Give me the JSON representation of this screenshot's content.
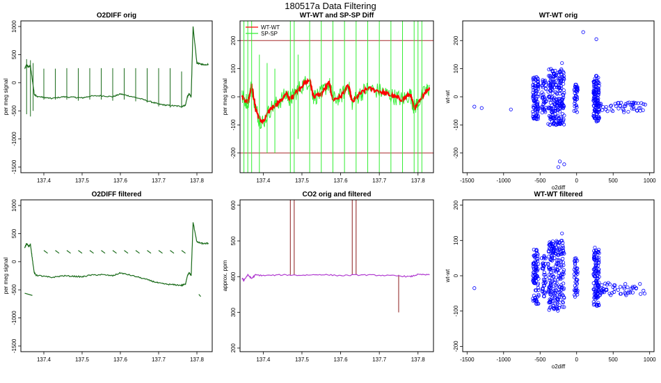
{
  "page": {
    "title": "180517a   Data Filtering"
  },
  "colors": {
    "dark_green": "#1a6b1a",
    "red": "#ff0000",
    "bright_green": "#33ee33",
    "dark_red": "#8b1a1a",
    "purple": "#b03ad0",
    "blue": "#0000ff",
    "hline": "#a52a2a"
  },
  "chart_data": [
    {
      "id": "o2diff-orig",
      "type": "line",
      "title": "O2DIFF orig",
      "xlabel": "",
      "ylabel": "per meg signal",
      "xlim": [
        137.34,
        137.84
      ],
      "ylim": [
        -1600,
        1100
      ],
      "xticks": [
        137.4,
        137.5,
        137.6,
        137.7,
        137.8
      ],
      "xtick_labels": [
        "137.4",
        "137.5",
        "137.6",
        "137.7",
        "137.8"
      ],
      "yticks": [
        -1500,
        -1000,
        -500,
        0,
        500,
        1000
      ],
      "ytick_labels": [
        "-1500",
        "-1000",
        "-500",
        "0",
        "500",
        "1000"
      ],
      "series": [
        {
          "name": "o2diff",
          "color": "#1a6b1a",
          "x": [
            137.35,
            137.355,
            137.36,
            137.365,
            137.37,
            137.375,
            137.38,
            137.4,
            137.42,
            137.45,
            137.48,
            137.5,
            137.52,
            137.55,
            137.58,
            137.6,
            137.62,
            137.65,
            137.68,
            137.7,
            137.72,
            137.74,
            137.76,
            137.77,
            137.775,
            137.78,
            137.785,
            137.79,
            137.8,
            137.81,
            137.82,
            137.83
          ],
          "y": [
            250,
            320,
            280,
            300,
            50,
            -200,
            -240,
            -260,
            -280,
            -250,
            -260,
            -270,
            -240,
            -230,
            -250,
            -200,
            -230,
            -280,
            -340,
            -380,
            -400,
            -410,
            -420,
            -400,
            -250,
            -200,
            -250,
            990,
            350,
            330,
            320,
            330
          ]
        },
        {
          "name": "spikes",
          "color": "#1a6b1a",
          "spikes_x": [
            137.355,
            137.365,
            137.372,
            137.4,
            137.43,
            137.46,
            137.49,
            137.52,
            137.55,
            137.58,
            137.61,
            137.64,
            137.67,
            137.7,
            137.73,
            137.76
          ],
          "spikes_top": [
            420,
            400,
            350,
            250,
            250,
            260,
            260,
            260,
            260,
            260,
            260,
            260,
            260,
            260,
            260,
            200
          ],
          "spikes_bottom": [
            -560,
            -600,
            -500,
            -300,
            -300,
            -300,
            -320,
            -300,
            -300,
            -320,
            -300,
            -330,
            -350,
            -420,
            -440,
            -450
          ]
        }
      ]
    },
    {
      "id": "wtwt-spsp-diff",
      "type": "line",
      "title": "WT-WT and SP-SP Diff",
      "xlabel": "",
      "ylabel": "per meg signal",
      "xlim": [
        137.34,
        137.84
      ],
      "ylim": [
        -270,
        270
      ],
      "xticks": [
        137.4,
        137.5,
        137.6,
        137.7,
        137.8
      ],
      "xtick_labels": [
        "137.4",
        "137.5",
        "137.6",
        "137.7",
        "137.8"
      ],
      "yticks": [
        -200,
        -100,
        0,
        100,
        200
      ],
      "ytick_labels": [
        "-200",
        "-100",
        "0",
        "100",
        "200"
      ],
      "hlines": [
        200,
        -200
      ],
      "legend": [
        {
          "label": "WT-WT",
          "color": "#ff0000"
        },
        {
          "label": "SP-SP",
          "color": "#33ee33"
        }
      ],
      "series": [
        {
          "name": "WT-WT",
          "color": "#ff0000",
          "x": [
            137.345,
            137.36,
            137.37,
            137.38,
            137.39,
            137.4,
            137.42,
            137.44,
            137.46,
            137.47,
            137.48,
            137.5,
            137.52,
            137.53,
            137.55,
            137.57,
            137.58,
            137.6,
            137.62,
            137.63,
            137.65,
            137.67,
            137.7,
            137.72,
            137.74,
            137.76,
            137.78,
            137.79,
            137.8,
            137.82,
            137.83
          ],
          "y": [
            0,
            -20,
            40,
            -40,
            -80,
            -90,
            -40,
            -20,
            10,
            -10,
            10,
            40,
            60,
            0,
            10,
            50,
            -10,
            0,
            40,
            -20,
            10,
            30,
            20,
            10,
            0,
            -10,
            10,
            -40,
            -20,
            20,
            30
          ]
        },
        {
          "name": "SP-SP spikes",
          "color": "#33ee33",
          "spikes_x": [
            137.35,
            137.36,
            137.37,
            137.39,
            137.41,
            137.43,
            137.47,
            137.48,
            137.49,
            137.52,
            137.55,
            137.58,
            137.61,
            137.64,
            137.67,
            137.7,
            137.73,
            137.76,
            137.79,
            137.8,
            137.81
          ],
          "spikes_top": [
            270,
            270,
            270,
            150,
            120,
            100,
            270,
            270,
            150,
            270,
            270,
            270,
            270,
            270,
            270,
            270,
            270,
            270,
            270,
            270,
            270
          ],
          "spikes_bottom": [
            -270,
            -270,
            -270,
            -270,
            -200,
            -200,
            -270,
            -270,
            -150,
            -270,
            -270,
            -270,
            -270,
            -270,
            -270,
            -270,
            -270,
            -270,
            -270,
            -270,
            -270
          ]
        }
      ]
    },
    {
      "id": "wtwt-orig",
      "type": "scatter",
      "title": "WT-WT orig",
      "xlabel": "o2diff",
      "ylabel": "wt-wt",
      "xlim": [
        -1560,
        1060
      ],
      "ylim": [
        -270,
        270
      ],
      "xticks": [
        -1500,
        -1000,
        -500,
        0,
        500,
        1000
      ],
      "xtick_labels": [
        "-1500",
        "-1000",
        "-500",
        "0",
        "500",
        "1000"
      ],
      "yticks": [
        -200,
        -100,
        0,
        100,
        200
      ],
      "ytick_labels": [
        "-200",
        "-100",
        "0",
        "100",
        "200"
      ],
      "clusters": [
        {
          "x": -560,
          "xspread": 40,
          "ymin": -80,
          "ymax": 75,
          "n": 90
        },
        {
          "x": -450,
          "xspread": 30,
          "ymin": -60,
          "ymax": 60,
          "n": 40
        },
        {
          "x": -280,
          "xspread": 110,
          "ymin": -100,
          "ymax": 100,
          "n": 220
        },
        {
          "x": -10,
          "xspread": 25,
          "ymin": -60,
          "ymax": 50,
          "n": 40
        },
        {
          "x": 270,
          "xspread": 40,
          "ymin": -90,
          "ymax": 75,
          "n": 110
        },
        {
          "x": 600,
          "xspread": 350,
          "ymin": -55,
          "ymax": -20,
          "n": 60
        }
      ],
      "outliers": [
        [
          -1400,
          -35
        ],
        [
          -1300,
          -40
        ],
        [
          -900,
          -45
        ],
        [
          -230,
          -230
        ],
        [
          -250,
          -250
        ],
        [
          -170,
          -240
        ],
        [
          90,
          230
        ],
        [
          270,
          205
        ],
        [
          -200,
          120
        ]
      ]
    },
    {
      "id": "o2diff-filtered",
      "type": "line",
      "title": "O2DIFF filtered",
      "xlabel": "",
      "ylabel": "per meg signal",
      "xlim": [
        137.34,
        137.84
      ],
      "ylim": [
        -1600,
        1100
      ],
      "xticks": [
        137.4,
        137.5,
        137.6,
        137.7,
        137.8
      ],
      "xtick_labels": [
        "137.4",
        "137.5",
        "137.6",
        "137.7",
        "137.8"
      ],
      "yticks": [
        -1500,
        -1000,
        -500,
        0,
        500,
        1000
      ],
      "ytick_labels": [
        "-1500",
        "-1000",
        "-500",
        "0",
        "500",
        "1000"
      ],
      "series": [
        {
          "name": "o2diff-filtered",
          "color": "#1a6b1a",
          "x": [
            137.35,
            137.355,
            137.36,
            137.365,
            137.37,
            137.375,
            137.38,
            137.4,
            137.42,
            137.45,
            137.48,
            137.5,
            137.52,
            137.55,
            137.58,
            137.6,
            137.62,
            137.65,
            137.68,
            137.7,
            137.72,
            137.74,
            137.76,
            137.77,
            137.775,
            137.78,
            137.785,
            137.79,
            137.8,
            137.81,
            137.82,
            137.83
          ],
          "y": [
            250,
            320,
            280,
            300,
            50,
            -200,
            -240,
            -260,
            -280,
            -250,
            -260,
            -270,
            -240,
            -230,
            -250,
            -200,
            -230,
            -280,
            -340,
            -380,
            -400,
            -410,
            -420,
            -400,
            -250,
            -200,
            -250,
            700,
            350,
            330,
            320,
            330
          ]
        },
        {
          "name": "gap-segments",
          "color": "#1a6b1a",
          "segments": [
            [
              137.35,
              -560,
              137.37,
              -600
            ],
            [
              137.4,
              200,
              137.41,
              150
            ],
            [
              137.43,
              200,
              137.44,
              150
            ],
            [
              137.46,
              200,
              137.47,
              150
            ],
            [
              137.49,
              200,
              137.5,
              150
            ],
            [
              137.52,
              200,
              137.53,
              150
            ],
            [
              137.55,
              200,
              137.56,
              150
            ],
            [
              137.58,
              200,
              137.59,
              150
            ],
            [
              137.61,
              200,
              137.62,
              150
            ],
            [
              137.64,
              200,
              137.65,
              150
            ],
            [
              137.67,
              200,
              137.68,
              150
            ],
            [
              137.7,
              200,
              137.71,
              150
            ],
            [
              137.73,
              200,
              137.74,
              150
            ],
            [
              137.76,
              200,
              137.77,
              150
            ],
            [
              137.805,
              -580,
              137.81,
              -620
            ]
          ]
        }
      ]
    },
    {
      "id": "co2-orig-filtered",
      "type": "line",
      "title": "CO2 orig and filtered",
      "xlabel": "",
      "ylabel": "approx. ppm",
      "xlim": [
        137.34,
        137.84
      ],
      "ylim": [
        190,
        615
      ],
      "xticks": [
        137.4,
        137.5,
        137.6,
        137.7,
        137.8
      ],
      "xtick_labels": [
        "137.4",
        "137.5",
        "137.6",
        "137.7",
        "137.8"
      ],
      "yticks": [
        200,
        300,
        400,
        500,
        600
      ],
      "ytick_labels": [
        "200",
        "300",
        "400",
        "500",
        "600"
      ],
      "series": [
        {
          "name": "co2-orig-spikes",
          "color": "#8b1a1a",
          "spikes_x": [
            137.47,
            137.48,
            137.63,
            137.64,
            137.75
          ],
          "spikes_top": [
            615,
            615,
            615,
            615,
            405
          ],
          "spikes_bottom": [
            405,
            405,
            405,
            405,
            300
          ]
        },
        {
          "name": "co2-filtered",
          "color": "#b03ad0",
          "x": [
            137.345,
            137.35,
            137.36,
            137.37,
            137.38,
            137.4,
            137.45,
            137.5,
            137.55,
            137.6,
            137.65,
            137.7,
            137.75,
            137.78,
            137.8,
            137.83
          ],
          "y": [
            395,
            390,
            405,
            395,
            405,
            403,
            405,
            404,
            406,
            403,
            405,
            404,
            402,
            400,
            406,
            405
          ]
        }
      ]
    },
    {
      "id": "wtwt-filtered",
      "type": "scatter",
      "title": "WT-WT filtered",
      "xlabel": "o2diff",
      "ylabel": "wt-wt",
      "xlim": [
        -1560,
        1060
      ],
      "ylim": [
        -215,
        215
      ],
      "xticks": [
        -1500,
        -1000,
        -500,
        0,
        500,
        1000
      ],
      "xtick_labels": [
        "-1500",
        "-1000",
        "-500",
        "0",
        "500",
        "1000"
      ],
      "yticks": [
        -200,
        -100,
        0,
        100,
        200
      ],
      "ytick_labels": [
        "-200",
        "-100",
        "0",
        "100",
        "200"
      ],
      "clusters": [
        {
          "x": -560,
          "xspread": 40,
          "ymin": -80,
          "ymax": 75,
          "n": 90
        },
        {
          "x": -450,
          "xspread": 30,
          "ymin": -60,
          "ymax": 60,
          "n": 40
        },
        {
          "x": -280,
          "xspread": 110,
          "ymin": -100,
          "ymax": 100,
          "n": 220
        },
        {
          "x": -10,
          "xspread": 25,
          "ymin": -60,
          "ymax": 50,
          "n": 40
        },
        {
          "x": 270,
          "xspread": 40,
          "ymin": -90,
          "ymax": 75,
          "n": 110
        },
        {
          "x": 600,
          "xspread": 350,
          "ymin": -55,
          "ymax": -20,
          "n": 60
        }
      ],
      "outliers": [
        [
          -1400,
          -35
        ],
        [
          -200,
          120
        ],
        [
          250,
          80
        ]
      ]
    }
  ]
}
